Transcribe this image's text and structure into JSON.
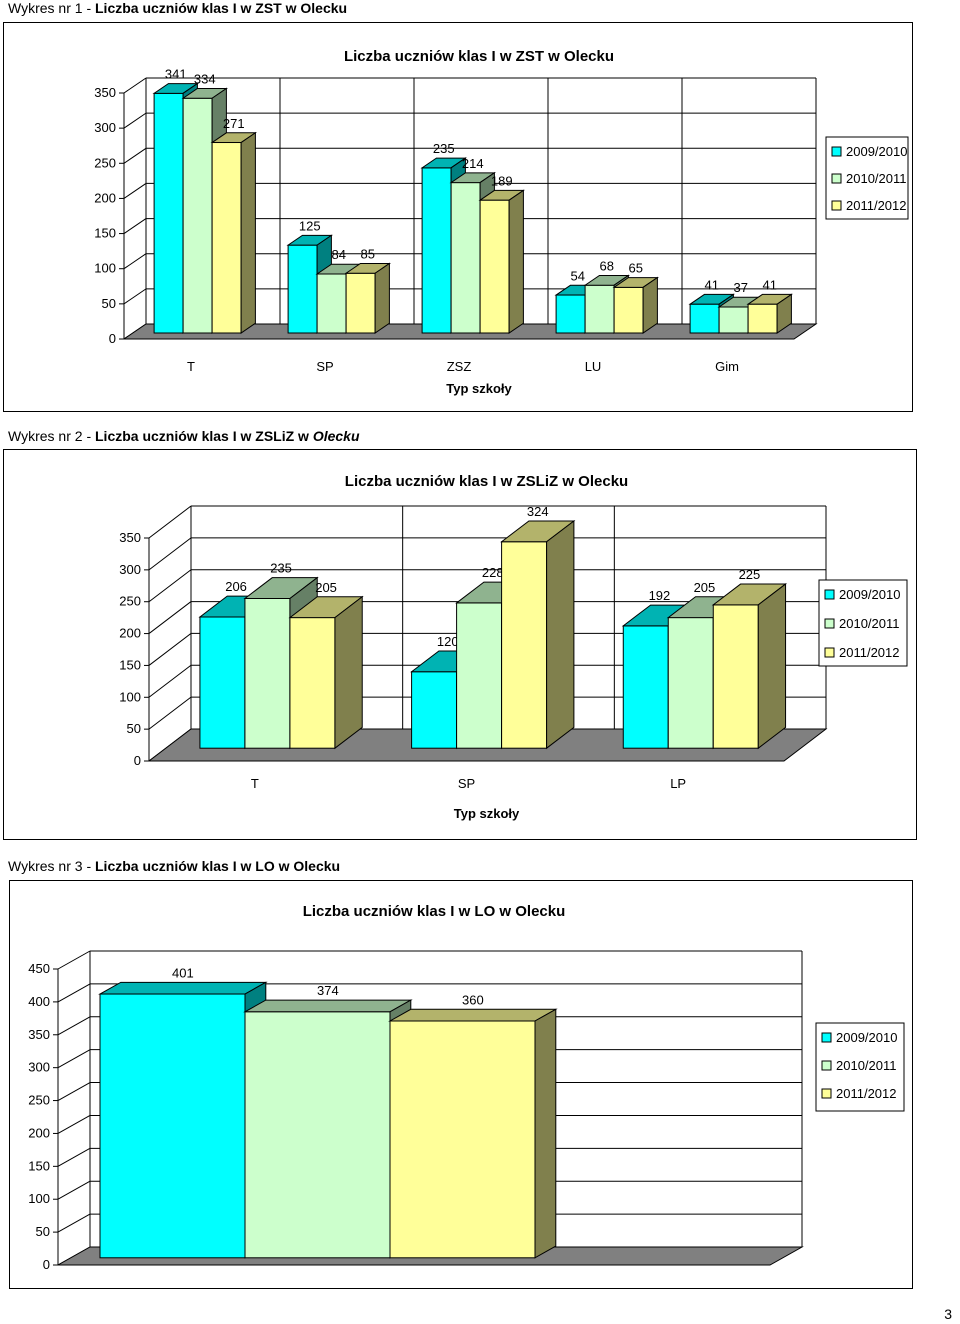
{
  "captions": [
    {
      "prefix": "Wykres nr 1 - ",
      "bold": "Liczba uczniów klas I w ZST w Olecku",
      "italic": ""
    },
    {
      "prefix": "Wykres nr 2 - ",
      "bold": "Liczba uczniów klas I w ZSLiZ w ",
      "italic": "Olecku"
    },
    {
      "prefix": "Wykres nr 3 - ",
      "bold": "Liczba uczniów klas I w LO w Olecku",
      "italic": ""
    }
  ],
  "page_number": "3",
  "colors": {
    "series": [
      "#00ffff",
      "#ccffcc",
      "#ffff99"
    ],
    "floor": "#808080",
    "grid": "#000000"
  },
  "chart_data": [
    {
      "type": "bar",
      "title": "Liczba uczniów klas I w ZST w Olecku",
      "xlabel": "Typ szkoły",
      "ylabel": "",
      "categories": [
        "T",
        "SP",
        "ZSZ",
        "LU",
        "Gim"
      ],
      "series": [
        {
          "name": "2009/2010",
          "values": [
            341,
            125,
            235,
            54,
            41
          ]
        },
        {
          "name": "2010/2011",
          "values": [
            334,
            84,
            214,
            68,
            37
          ]
        },
        {
          "name": "2011/2012",
          "values": [
            271,
            85,
            189,
            65,
            41
          ]
        }
      ],
      "ylim": [
        0,
        350
      ],
      "yticks": [
        0,
        50,
        100,
        150,
        200,
        250,
        300,
        350
      ],
      "grid": true,
      "legend": "right"
    },
    {
      "type": "bar",
      "title": "Liczba uczniów klas I w ZSLiZ w Olecku",
      "xlabel": "Typ szkoły",
      "ylabel": "",
      "categories": [
        "T",
        "SP",
        "LP"
      ],
      "series": [
        {
          "name": "2009/2010",
          "values": [
            206,
            120,
            192
          ]
        },
        {
          "name": "2010/2011",
          "values": [
            235,
            228,
            205
          ]
        },
        {
          "name": "2011/2012",
          "values": [
            205,
            324,
            225
          ]
        }
      ],
      "ylim": [
        0,
        350
      ],
      "yticks": [
        0,
        50,
        100,
        150,
        200,
        250,
        300,
        350
      ],
      "grid": true,
      "legend": "right"
    },
    {
      "type": "bar",
      "title": "Liczba uczniów klas I w LO w Olecku",
      "xlabel": "",
      "ylabel": "",
      "categories": [
        ""
      ],
      "series": [
        {
          "name": "2009/2010",
          "values": [
            401
          ]
        },
        {
          "name": "2010/2011",
          "values": [
            374
          ]
        },
        {
          "name": "2011/2012",
          "values": [
            360
          ]
        }
      ],
      "ylim": [
        0,
        450
      ],
      "yticks": [
        0,
        50,
        100,
        150,
        200,
        250,
        300,
        350,
        400,
        450
      ],
      "grid": true,
      "legend": "right"
    }
  ]
}
